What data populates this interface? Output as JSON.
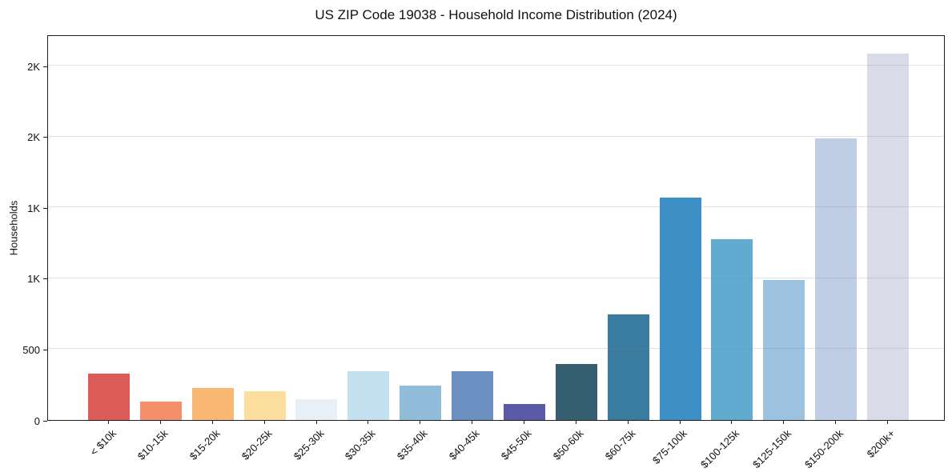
{
  "chart_data": {
    "type": "bar",
    "title": "US ZIP Code 19038 - Household Income Distribution (2024)",
    "xlabel": "",
    "ylabel": "Households",
    "categories": [
      "< $10k",
      "$10-15k",
      "$15-20k",
      "$20-25k",
      "$25-30k",
      "$30-35k",
      "$35-40k",
      "$40-45k",
      "$45-50k",
      "$50-60k",
      "$60-75k",
      "$75-100k",
      "$100-125k",
      "$125-150k",
      "$150-200k",
      "$200k+"
    ],
    "values": [
      325,
      130,
      225,
      205,
      145,
      345,
      245,
      345,
      115,
      395,
      745,
      1570,
      1275,
      990,
      1985,
      2585
    ],
    "bar_colors": [
      "#db5c56",
      "#f58e6b",
      "#f9b871",
      "#fcdf9e",
      "#e7f0f6",
      "#c3e1ee",
      "#91bddb",
      "#6c90c2",
      "#5a5aa9",
      "#355f71",
      "#3a7ba0",
      "#3d90c6",
      "#62abd0",
      "#9cc2df",
      "#bfcde5",
      "#dadbe9"
    ],
    "ylim": [
      0,
      2720
    ],
    "yticks": [
      {
        "value": 0,
        "label": "0"
      },
      {
        "value": 500,
        "label": "500"
      },
      {
        "value": 1000,
        "label": "1K"
      },
      {
        "value": 1500,
        "label": "1K"
      },
      {
        "value": 2000,
        "label": "2K"
      },
      {
        "value": 2500,
        "label": "2K"
      }
    ],
    "grid": "horizontal",
    "grid_over_bars": true,
    "legend": "none",
    "frame": "box",
    "background": "#ffffff",
    "text_color": "#1a1a1a"
  }
}
